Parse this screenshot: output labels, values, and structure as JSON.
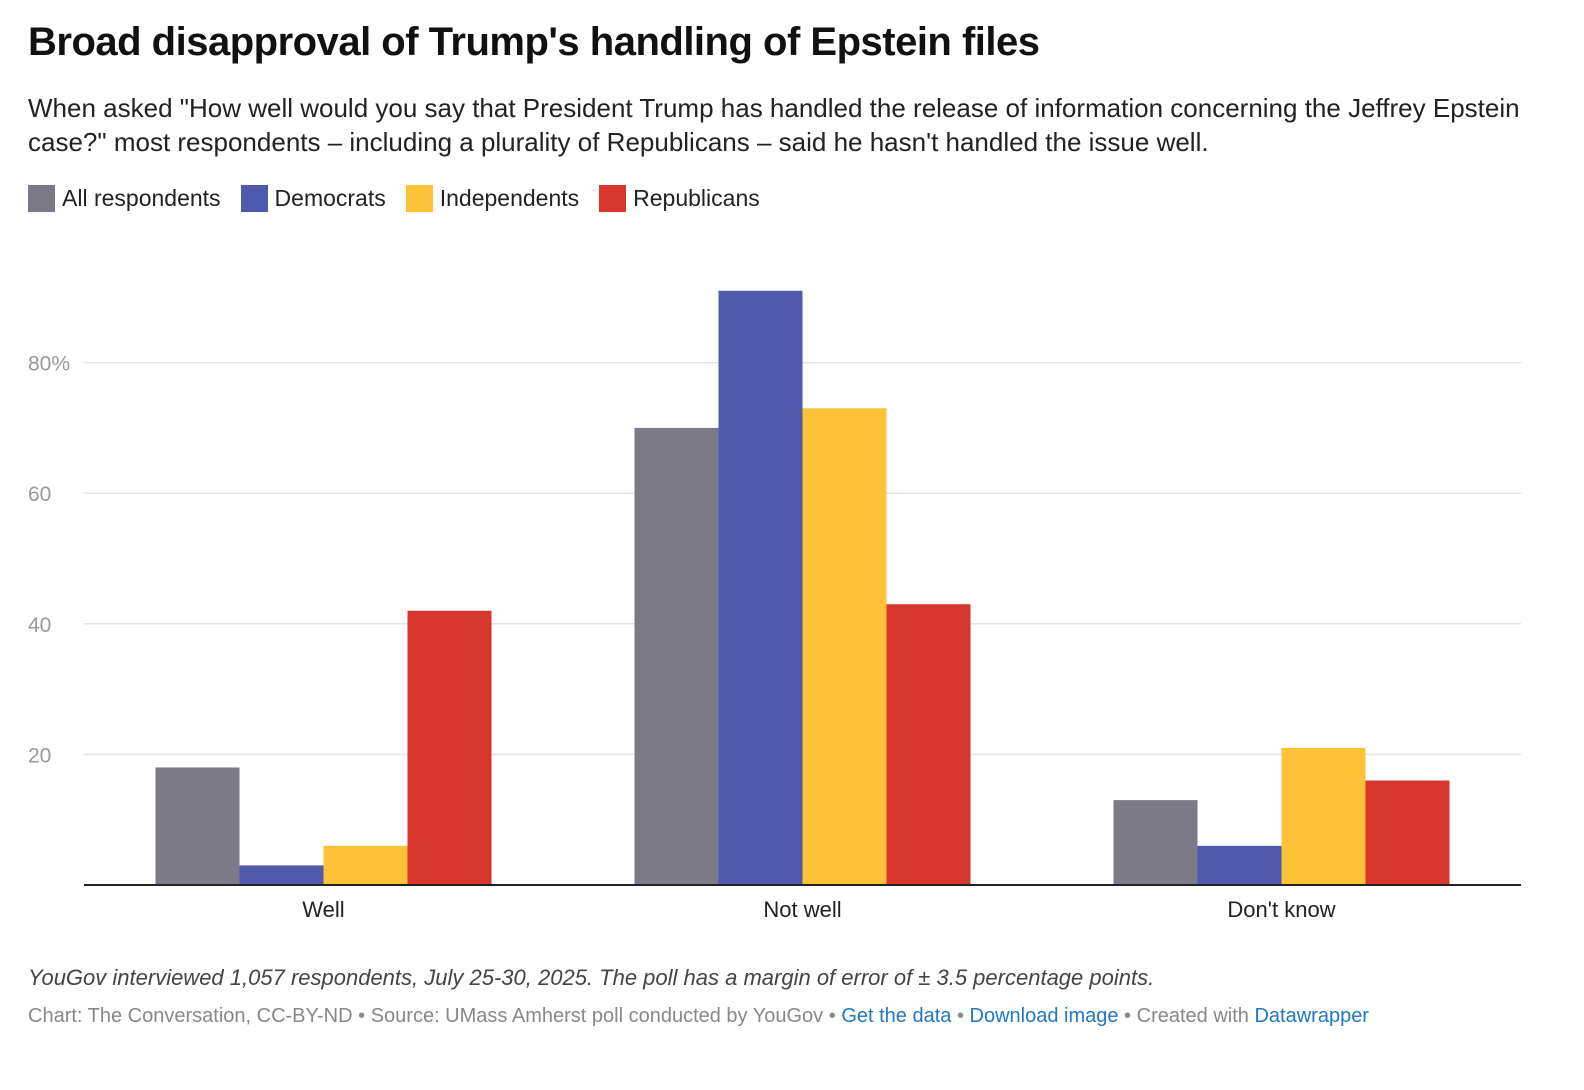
{
  "title": "Broad disapproval of Trump's handling of Epstein files",
  "subtitle": "When asked \"How well would you say that President Trump has handled the release of information concerning the Jeffrey Epstein case?\" most respondents – including a plurality of Republicans – said he hasn't handled the issue well.",
  "legend": [
    {
      "label": "All respondents",
      "color": "#7b7a86"
    },
    {
      "label": "Democrats",
      "color": "#4f5aae"
    },
    {
      "label": "Independents",
      "color": "#fdc237"
    },
    {
      "label": "Republicans",
      "color": "#d6362c"
    }
  ],
  "chart_data": {
    "type": "bar",
    "categories": [
      "Well",
      "Not well",
      "Don't know"
    ],
    "series": [
      {
        "name": "All respondents",
        "color": "#7b7a86",
        "values": [
          18,
          70,
          13
        ]
      },
      {
        "name": "Democrats",
        "color": "#4f5aae",
        "values": [
          3,
          91,
          6
        ]
      },
      {
        "name": "Independents",
        "color": "#fdc237",
        "values": [
          6,
          73,
          21
        ]
      },
      {
        "name": "Republicans",
        "color": "#d6362c",
        "values": [
          42,
          43,
          16
        ]
      }
    ],
    "yticks": [
      20,
      40,
      60,
      80
    ],
    "ytick_labels": [
      "20",
      "40",
      "60",
      "80%"
    ],
    "ylim": [
      0,
      92
    ],
    "grid": true,
    "legend_position": "top-left"
  },
  "footer": {
    "note": "YouGov interviewed 1,057 respondents, July 25-30, 2025. The poll has a margin of error of ± 3.5 percentage points.",
    "credit": "Chart: The Conversation, CC-BY-ND",
    "sep1": " • ",
    "source": "Source: UMass Amherst poll conducted by YouGov",
    "sep2": " • ",
    "get_data": "Get the data",
    "sep3": " • ",
    "download": "Download image",
    "sep4": " • ",
    "created_with": "Created with ",
    "datawrapper": "Datawrapper"
  }
}
